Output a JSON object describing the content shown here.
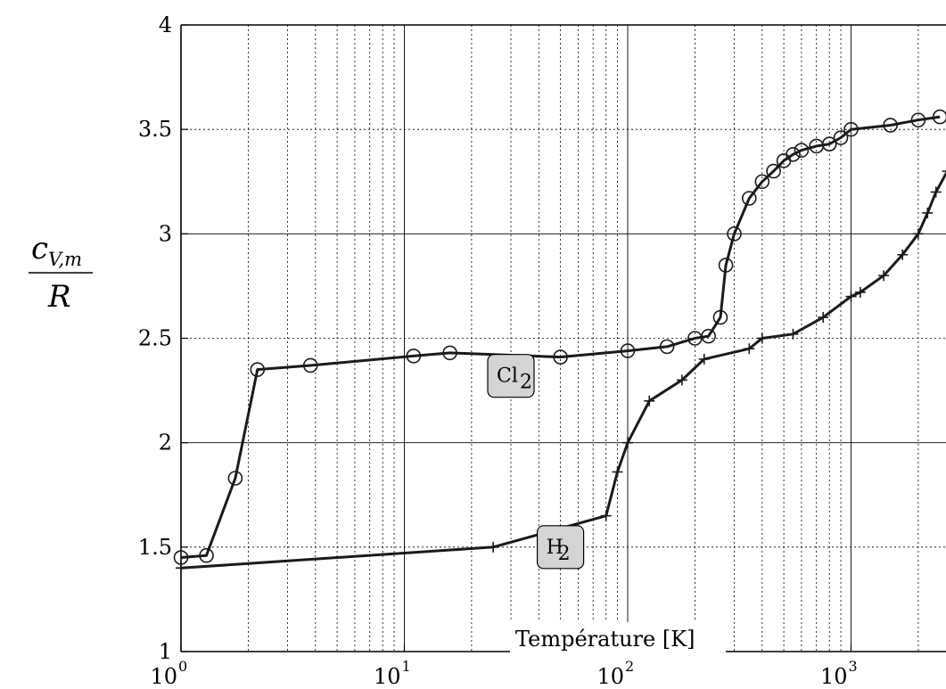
{
  "chart_data": {
    "type": "line",
    "title": "",
    "xlabel": "Température [K]",
    "ylabel": {
      "numerator": "c",
      "subscript": "V,m",
      "denominator": "R"
    },
    "xscale": "log",
    "xlim": [
      1,
      3000
    ],
    "ylim": [
      1,
      4
    ],
    "grid": true,
    "x_ticks": [
      {
        "base": "10",
        "exp": "0",
        "value": 1
      },
      {
        "base": "10",
        "exp": "1",
        "value": 10
      },
      {
        "base": "10",
        "exp": "2",
        "value": 100
      },
      {
        "base": "10",
        "exp": "3",
        "value": 1000
      }
    ],
    "y_ticks": [
      {
        "label": "1",
        "value": 1
      },
      {
        "label": "1.5",
        "value": 1.5
      },
      {
        "label": "2",
        "value": 2
      },
      {
        "label": "2.5",
        "value": 2.5
      },
      {
        "label": "3",
        "value": 3
      },
      {
        "label": "3.5",
        "value": 3.5
      },
      {
        "label": "4",
        "value": 4
      }
    ],
    "series": [
      {
        "name": "Cl",
        "name_subscript": "2",
        "marker": "circle",
        "label_at": [
          30,
          2.32
        ],
        "points": [
          [
            1.0,
            1.45
          ],
          [
            1.3,
            1.46
          ],
          [
            1.75,
            1.83
          ],
          [
            2.2,
            2.35
          ],
          [
            3.8,
            2.37
          ],
          [
            11,
            2.415
          ],
          [
            16,
            2.43
          ],
          [
            50,
            2.41
          ],
          [
            100,
            2.44
          ],
          [
            150,
            2.46
          ],
          [
            200,
            2.5
          ],
          [
            230,
            2.51
          ],
          [
            260,
            2.6
          ],
          [
            275,
            2.85
          ],
          [
            300,
            3.0
          ],
          [
            350,
            3.17
          ],
          [
            400,
            3.25
          ],
          [
            450,
            3.3
          ],
          [
            500,
            3.35
          ],
          [
            550,
            3.38
          ],
          [
            600,
            3.4
          ],
          [
            700,
            3.42
          ],
          [
            800,
            3.43
          ],
          [
            900,
            3.46
          ],
          [
            1000,
            3.5
          ],
          [
            1500,
            3.52
          ],
          [
            2000,
            3.545
          ],
          [
            2500,
            3.56
          ]
        ]
      },
      {
        "name": "H",
        "name_subscript": "2",
        "marker": "plus",
        "label_at": [
          50,
          1.5
        ],
        "points": [
          [
            1.0,
            1.4
          ],
          [
            25,
            1.5
          ],
          [
            80,
            1.65
          ],
          [
            90,
            1.86
          ],
          [
            100,
            2.0
          ],
          [
            125,
            2.2
          ],
          [
            175,
            2.3
          ],
          [
            220,
            2.4
          ],
          [
            350,
            2.45
          ],
          [
            400,
            2.5
          ],
          [
            550,
            2.52
          ],
          [
            750,
            2.6
          ],
          [
            1000,
            2.7
          ],
          [
            1100,
            2.72
          ],
          [
            1400,
            2.8
          ],
          [
            1700,
            2.9
          ],
          [
            2000,
            3.0
          ],
          [
            2200,
            3.1
          ],
          [
            2400,
            3.2
          ],
          [
            2700,
            3.3
          ],
          [
            3000,
            3.4
          ]
        ]
      }
    ]
  }
}
